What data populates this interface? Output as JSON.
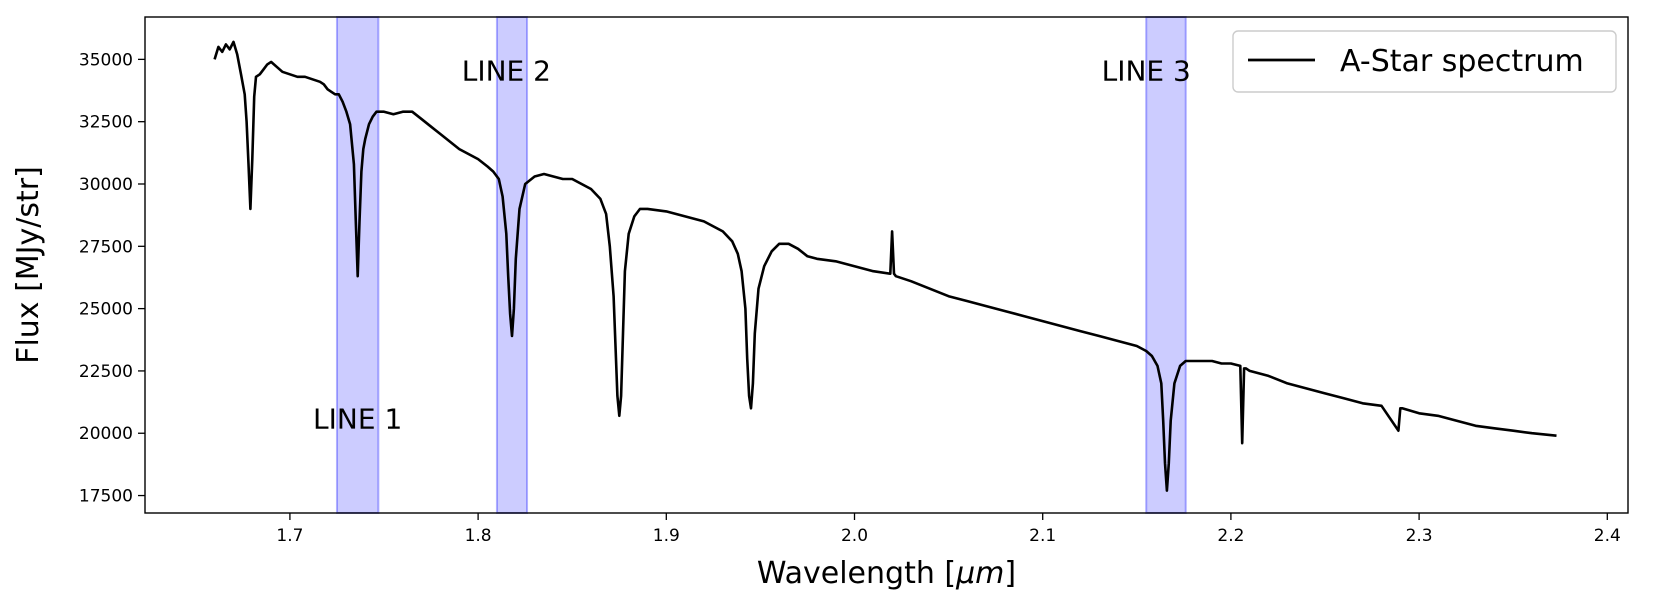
{
  "chart_data": {
    "type": "line",
    "xlabel": "Wavelength [",
    "xlabel_unit": "μm",
    "xlabel_end": "]",
    "ylabel": "Flux [MJy/str]",
    "xlim": [
      1.623,
      2.411
    ],
    "ylim": [
      16800,
      36700
    ],
    "xticks": [
      1.7,
      1.8,
      1.9,
      2.0,
      2.1,
      2.2,
      2.3,
      2.4
    ],
    "yticks": [
      17500,
      20000,
      22500,
      25000,
      27500,
      30000,
      32500,
      35000
    ],
    "xtick_labels": [
      "1.7",
      "1.8",
      "1.9",
      "2.0",
      "2.1",
      "2.2",
      "2.3",
      "2.4"
    ],
    "ytick_labels": [
      "17500",
      "20000",
      "22500",
      "25000",
      "27500",
      "30000",
      "32500",
      "35000"
    ],
    "grid": false,
    "legend": {
      "placement": "top-right",
      "entries": [
        {
          "name": "A-Star spectrum",
          "color": "#000000"
        }
      ]
    },
    "bands": [
      {
        "label": "LINE 1",
        "x0": 1.725,
        "x1": 1.747,
        "label_x": 1.736,
        "label_y": 20200,
        "color": "#0000ff"
      },
      {
        "label": "LINE 2",
        "x0": 1.81,
        "x1": 1.826,
        "label_x": 1.815,
        "label_y": 34150,
        "color": "#0000ff"
      },
      {
        "label": "LINE 3",
        "x0": 2.155,
        "x1": 2.176,
        "label_x": 2.155,
        "label_y": 34150,
        "color": "#0000ff"
      }
    ],
    "series": [
      {
        "name": "A-Star spectrum",
        "color": "#000000",
        "x": [
          1.66,
          1.662,
          1.664,
          1.666,
          1.668,
          1.67,
          1.672,
          1.674,
          1.676,
          1.677,
          1.678,
          1.679,
          1.68,
          1.681,
          1.682,
          1.684,
          1.686,
          1.688,
          1.69,
          1.693,
          1.696,
          1.7,
          1.704,
          1.708,
          1.712,
          1.716,
          1.718,
          1.72,
          1.722,
          1.724,
          1.726,
          1.728,
          1.73,
          1.732,
          1.734,
          1.735,
          1.736,
          1.737,
          1.738,
          1.739,
          1.74,
          1.742,
          1.744,
          1.746,
          1.75,
          1.755,
          1.76,
          1.765,
          1.77,
          1.775,
          1.78,
          1.785,
          1.79,
          1.795,
          1.8,
          1.805,
          1.808,
          1.811,
          1.813,
          1.815,
          1.816,
          1.817,
          1.818,
          1.819,
          1.82,
          1.822,
          1.825,
          1.83,
          1.835,
          1.84,
          1.845,
          1.85,
          1.855,
          1.86,
          1.865,
          1.868,
          1.87,
          1.872,
          1.873,
          1.874,
          1.875,
          1.876,
          1.877,
          1.878,
          1.88,
          1.883,
          1.886,
          1.89,
          1.9,
          1.91,
          1.92,
          1.93,
          1.935,
          1.938,
          1.94,
          1.942,
          1.943,
          1.944,
          1.945,
          1.946,
          1.947,
          1.949,
          1.952,
          1.956,
          1.96,
          1.965,
          1.97,
          1.975,
          1.98,
          1.99,
          2.0,
          2.01,
          2.019,
          2.02,
          2.021,
          2.022,
          2.03,
          2.04,
          2.05,
          2.06,
          2.07,
          2.08,
          2.09,
          2.1,
          2.11,
          2.12,
          2.13,
          2.14,
          2.15,
          2.155,
          2.158,
          2.161,
          2.163,
          2.164,
          2.165,
          2.166,
          2.167,
          2.168,
          2.17,
          2.173,
          2.176,
          2.18,
          2.185,
          2.19,
          2.195,
          2.2,
          2.205,
          2.206,
          2.207,
          2.208,
          2.21,
          2.22,
          2.23,
          2.24,
          2.25,
          2.26,
          2.27,
          2.28,
          2.289,
          2.29,
          2.291,
          2.3,
          2.31,
          2.32,
          2.33,
          2.34,
          2.35,
          2.36,
          2.373
        ],
        "y": [
          35000,
          35500,
          35300,
          35600,
          35400,
          35700,
          35200,
          34400,
          33600,
          32500,
          30800,
          29000,
          31000,
          33500,
          34300,
          34400,
          34600,
          34800,
          34900,
          34700,
          34500,
          34400,
          34300,
          34300,
          34200,
          34100,
          34000,
          33800,
          33700,
          33600,
          33600,
          33300,
          32900,
          32400,
          30800,
          28500,
          26300,
          28500,
          30500,
          31400,
          31800,
          32400,
          32700,
          32900,
          32900,
          32800,
          32900,
          32900,
          32600,
          32300,
          32000,
          31700,
          31400,
          31200,
          31000,
          30700,
          30500,
          30200,
          29500,
          28000,
          26300,
          24800,
          23900,
          25000,
          27000,
          29000,
          30000,
          30300,
          30400,
          30300,
          30200,
          30200,
          30000,
          29800,
          29400,
          28800,
          27500,
          25500,
          23500,
          21500,
          20700,
          21500,
          24000,
          26500,
          28000,
          28700,
          29000,
          29000,
          28900,
          28700,
          28500,
          28100,
          27700,
          27200,
          26500,
          25000,
          23000,
          21500,
          21000,
          22000,
          24000,
          25800,
          26700,
          27300,
          27600,
          27600,
          27400,
          27100,
          27000,
          26900,
          26700,
          26500,
          26400,
          28100,
          26400,
          26300,
          26100,
          25800,
          25500,
          25300,
          25100,
          24900,
          24700,
          24500,
          24300,
          24100,
          23900,
          23700,
          23500,
          23300,
          23100,
          22700,
          22000,
          20500,
          18800,
          17700,
          18800,
          20500,
          22000,
          22700,
          22900,
          22900,
          22900,
          22900,
          22800,
          22800,
          22700,
          19600,
          22600,
          22600,
          22500,
          22300,
          22000,
          21800,
          21600,
          21400,
          21200,
          21100,
          20100,
          21000,
          21000,
          20800,
          20700,
          20500,
          20300,
          20200,
          20100,
          20000,
          19900
        ]
      }
    ]
  }
}
